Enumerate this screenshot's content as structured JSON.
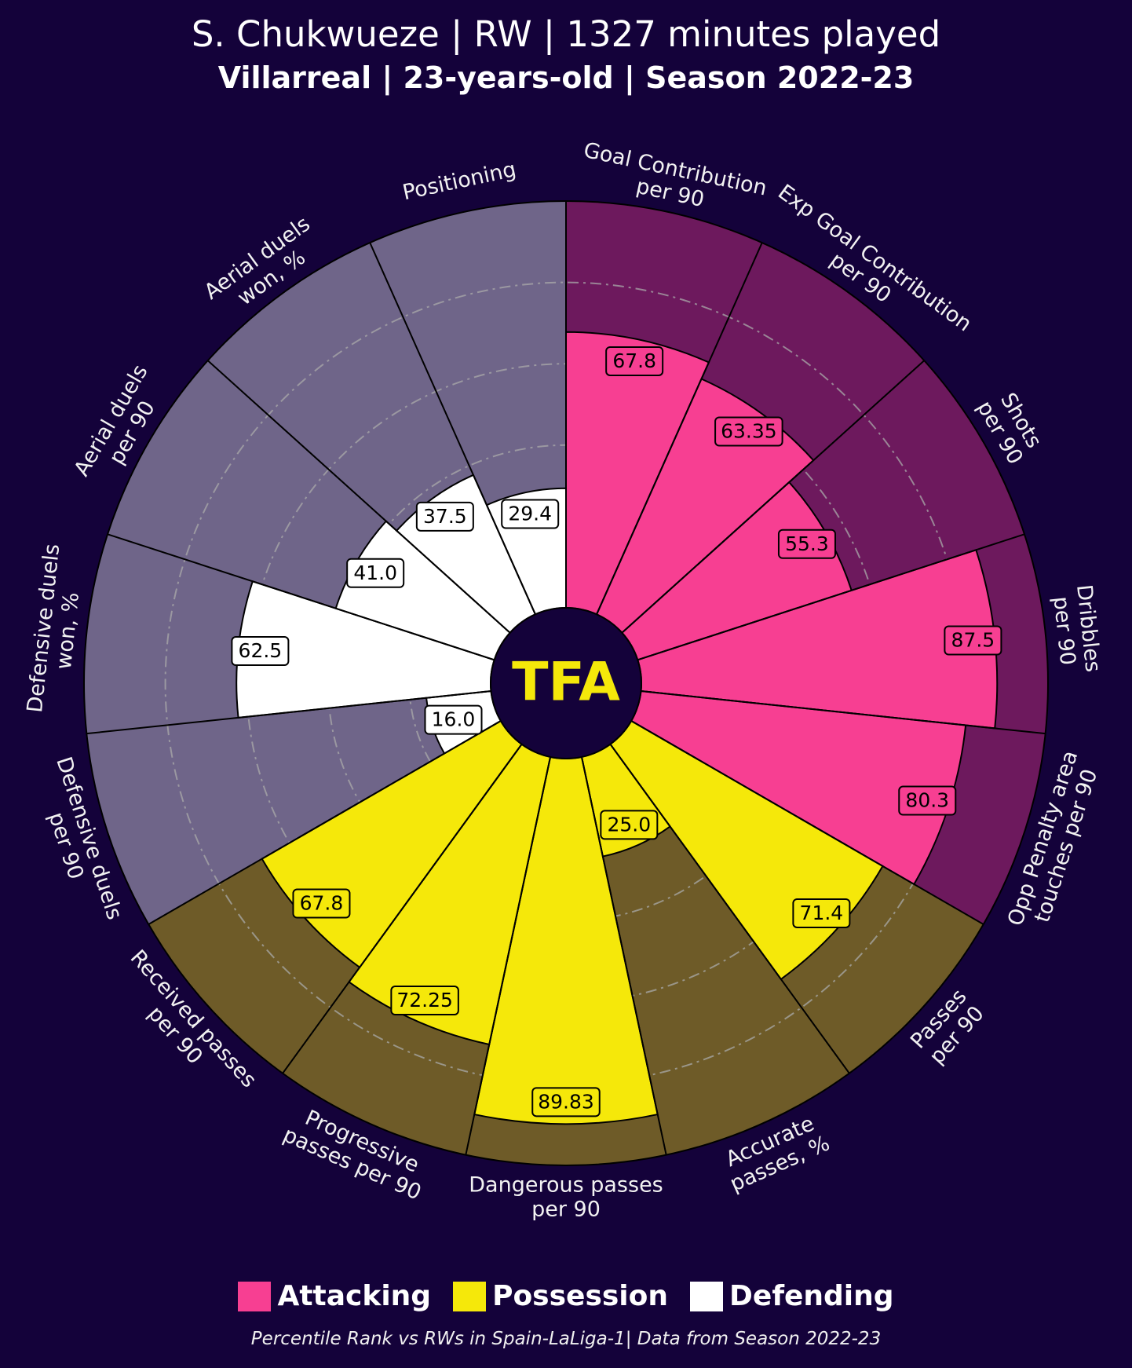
{
  "header": {
    "title": "S. Chukwueze | RW | 1327 minutes played",
    "subtitle": "Villarreal | 23-years-old | Season 2022-23"
  },
  "logo": {
    "text": "TFA",
    "color": "#f5e80a"
  },
  "legend": {
    "items": [
      {
        "label": "Attacking",
        "color": "#f73f92"
      },
      {
        "label": "Possession",
        "color": "#f5e80a"
      },
      {
        "label": "Defending",
        "color": "#ffffff"
      }
    ]
  },
  "footer": {
    "note": "Percentile Rank vs RWs in Spain-LaLiga-1| Data from Season 2022-23"
  },
  "chart_data": {
    "type": "pie",
    "subtype": "polar-bar",
    "scale": [
      0,
      100
    ],
    "gridlines": [
      20,
      40,
      60,
      80
    ],
    "colors": {
      "Attacking": {
        "value": "#f73f92",
        "background": "#6d195d"
      },
      "Possession": {
        "value": "#f5e80a",
        "background": "#6e5b28"
      },
      "Defending": {
        "value": "#ffffff",
        "background": "#6f6589"
      }
    },
    "slices": [
      {
        "label": [
          "Goal Contribution",
          "per 90"
        ],
        "value": 67.8,
        "display": "67.8",
        "group": "Attacking"
      },
      {
        "label": [
          "Exp Goal Contribution",
          "per 90"
        ],
        "value": 63.35,
        "display": "63.35",
        "group": "Attacking"
      },
      {
        "label": [
          "Shots",
          "per 90"
        ],
        "value": 55.3,
        "display": "55.3",
        "group": "Attacking"
      },
      {
        "label": [
          "Dribbles",
          "per 90"
        ],
        "value": 87.5,
        "display": "87.5",
        "group": "Attacking"
      },
      {
        "label": [
          "Opp Penalty area",
          "touches per 90"
        ],
        "value": 80.3,
        "display": "80.3",
        "group": "Attacking"
      },
      {
        "label": [
          "Passes",
          "per 90"
        ],
        "value": 71.4,
        "display": "71.4",
        "group": "Possession"
      },
      {
        "label": [
          "Accurate",
          "passes, %"
        ],
        "value": 25.0,
        "display": "25.0",
        "group": "Possession"
      },
      {
        "label": [
          "Dangerous passes",
          "per 90"
        ],
        "value": 89.83,
        "display": "89.83",
        "group": "Possession"
      },
      {
        "label": [
          "Progressive",
          "passes per 90"
        ],
        "value": 72.25,
        "display": "72.25",
        "group": "Possession"
      },
      {
        "label": [
          "Received passes",
          "per 90"
        ],
        "value": 67.8,
        "display": "67.8",
        "group": "Possession"
      },
      {
        "label": [
          "Defensive duels",
          "per 90"
        ],
        "value": 16.0,
        "display": "16.0",
        "group": "Defending"
      },
      {
        "label": [
          "Defensive duels",
          "won, %"
        ],
        "value": 62.5,
        "display": "62.5",
        "group": "Defending"
      },
      {
        "label": [
          "Aerial duels",
          "per 90"
        ],
        "value": 41.0,
        "display": "41.0",
        "group": "Defending"
      },
      {
        "label": [
          "Aerial duels",
          "won, %"
        ],
        "value": 37.5,
        "display": "37.5",
        "group": "Defending"
      },
      {
        "label": [
          "Positioning"
        ],
        "value": 29.4,
        "display": "29.4",
        "group": "Defending"
      }
    ]
  }
}
